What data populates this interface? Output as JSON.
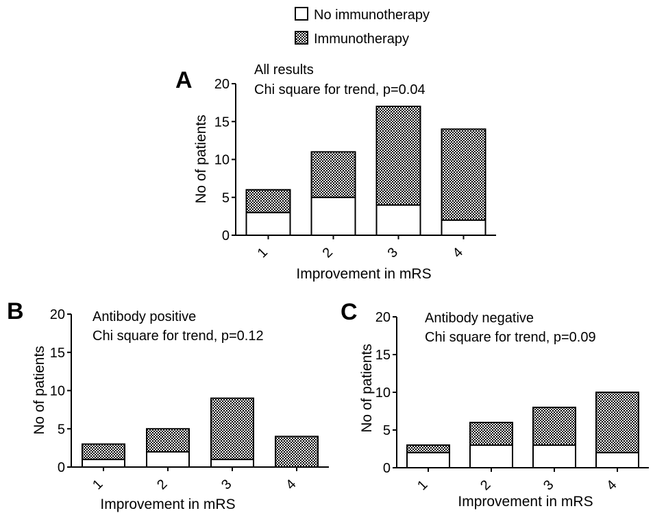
{
  "legend": {
    "no_immuno_label": "No immunotherapy",
    "immuno_label": "Immunotherapy",
    "no_immuno_color": "#ffffff",
    "immuno_pattern": "checkered"
  },
  "chart_data": [
    {
      "type": "bar",
      "stacked": true,
      "panel": "A",
      "annotation_line1": "All results",
      "annotation_line2": "Chi square for trend, p=0.04",
      "xlabel": "Improvement in mRS",
      "ylabel": "No of patients",
      "categories": [
        "1",
        "2",
        "3",
        "4"
      ],
      "ylim": [
        0,
        20
      ],
      "yticks": [
        "0",
        "5",
        "10",
        "15",
        "20"
      ],
      "series": [
        {
          "name": "No immunotherapy",
          "values": [
            3,
            5,
            4,
            2
          ]
        },
        {
          "name": "Immunotherapy",
          "values": [
            3,
            6,
            13,
            12
          ]
        }
      ]
    },
    {
      "type": "bar",
      "stacked": true,
      "panel": "B",
      "annotation_line1": "Antibody positive",
      "annotation_line2": "Chi square for trend, p=0.12",
      "xlabel": "Improvement in mRS",
      "ylabel": "No of patients",
      "categories": [
        "1",
        "2",
        "3",
        "4"
      ],
      "ylim": [
        0,
        20
      ],
      "yticks": [
        "0",
        "5",
        "10",
        "15",
        "20"
      ],
      "series": [
        {
          "name": "No immunotherapy",
          "values": [
            1,
            2,
            1,
            0
          ]
        },
        {
          "name": "Immunotherapy",
          "values": [
            2,
            3,
            8,
            4
          ]
        }
      ]
    },
    {
      "type": "bar",
      "stacked": true,
      "panel": "C",
      "annotation_line1": "Antibody negative",
      "annotation_line2": "Chi square for trend, p=0.09",
      "xlabel": "Improvement in mRS",
      "ylabel": "No of patients",
      "categories": [
        "1",
        "2",
        "3",
        "4"
      ],
      "ylim": [
        0,
        20
      ],
      "yticks": [
        "0",
        "5",
        "10",
        "15",
        "20"
      ],
      "series": [
        {
          "name": "No immunotherapy",
          "values": [
            2,
            3,
            3,
            2
          ]
        },
        {
          "name": "Immunotherapy",
          "values": [
            1,
            3,
            5,
            8
          ]
        }
      ]
    }
  ]
}
